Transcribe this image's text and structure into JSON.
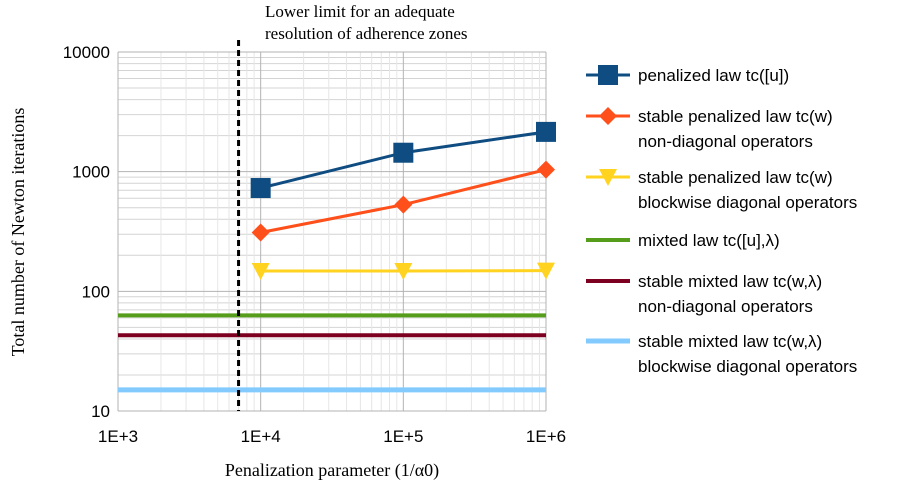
{
  "chart_data": {
    "type": "line",
    "title": "",
    "xlabel": "Penalization parameter (1/α0)",
    "ylabel": "Total number of Newton iterations",
    "x_scale": "log",
    "y_scale": "log",
    "xlim": [
      1000,
      1000000
    ],
    "ylim": [
      10,
      10000
    ],
    "x_ticks": [
      1000,
      10000,
      100000,
      1000000
    ],
    "x_tick_labels": [
      "1E+3",
      "1E+4",
      "1E+5",
      "1E+6"
    ],
    "y_ticks": [
      10,
      100,
      1000,
      10000
    ],
    "y_tick_labels": [
      "10",
      "100",
      "1000",
      "10000"
    ],
    "grid": true,
    "legend_position": "right",
    "annotation": {
      "lines": [
        "Lower limit for an adequate",
        "resolution of adherence zones"
      ],
      "x": 7000,
      "style": "dashed-vertical"
    },
    "series": [
      {
        "name_lines": [
          "penalized law tc([u])"
        ],
        "x": [
          10000,
          100000,
          1000000
        ],
        "y": [
          730,
          1440,
          2150
        ],
        "color": "#0f4c81",
        "marker": "square",
        "width": 3
      },
      {
        "name_lines": [
          "stable penalized law tc(w)",
          "non-diagonal operators"
        ],
        "x": [
          10000,
          100000,
          1000000
        ],
        "y": [
          310,
          530,
          1040
        ],
        "color": "#ff4f1a",
        "marker": "diamond",
        "width": 3
      },
      {
        "name_lines": [
          "stable penalized law tc(w)",
          "blockwise diagonal operators"
        ],
        "x": [
          10000,
          100000,
          1000000
        ],
        "y": [
          148,
          148,
          149
        ],
        "color": "#ffd320",
        "marker": "triangle-down",
        "width": 3
      },
      {
        "name_lines": [
          "mixted law tc([u],λ)"
        ],
        "x": [
          1000,
          1000000
        ],
        "y": [
          63,
          63
        ],
        "color": "#579d1c",
        "marker": "none",
        "width": 4
      },
      {
        "name_lines": [
          "stable mixted law tc(w,λ)",
          "non-diagonal operators"
        ],
        "x": [
          1000,
          1000000
        ],
        "y": [
          43,
          43
        ],
        "color": "#7e0021",
        "marker": "none",
        "width": 4
      },
      {
        "name_lines": [
          "stable mixted law tc(w,λ)",
          "blockwise diagonal operators"
        ],
        "x": [
          1000,
          1000000
        ],
        "y": [
          15,
          15
        ],
        "color": "#83caff",
        "marker": "none",
        "width": 5
      }
    ]
  }
}
